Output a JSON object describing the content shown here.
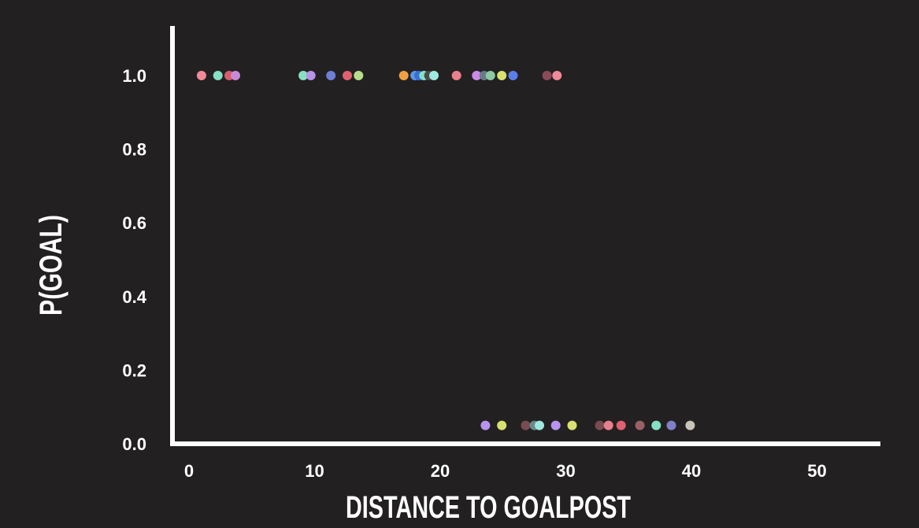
{
  "chart_data": {
    "type": "scatter",
    "title": "",
    "xlabel": "DISTANCE TO GOALPOST",
    "ylabel": "P(GOAL)",
    "xlim": [
      -1.5,
      57
    ],
    "ylim": [
      0,
      1.1
    ],
    "x_ticks": [
      0,
      10,
      20,
      30,
      40,
      50
    ],
    "y_ticks": [
      0.0,
      0.2,
      0.4,
      0.6,
      0.8,
      1.0
    ],
    "y_tick_labels": [
      "0.0",
      "0.2",
      "0.4",
      "0.6",
      "0.8",
      "1.0"
    ],
    "grid": false,
    "points": [
      {
        "x": 1.0,
        "y": 1.0,
        "color": "#f08a96"
      },
      {
        "x": 2.3,
        "y": 1.0,
        "color": "#86e0c4"
      },
      {
        "x": 3.2,
        "y": 1.0,
        "color": "#d45d6e"
      },
      {
        "x": 3.7,
        "y": 1.0,
        "color": "#c98ad8"
      },
      {
        "x": 9.1,
        "y": 1.0,
        "color": "#86e0c4"
      },
      {
        "x": 9.7,
        "y": 1.0,
        "color": "#b894e8"
      },
      {
        "x": 11.3,
        "y": 1.0,
        "color": "#6f7fd6"
      },
      {
        "x": 12.6,
        "y": 1.0,
        "color": "#e06070"
      },
      {
        "x": 13.5,
        "y": 1.0,
        "color": "#b8dc8c"
      },
      {
        "x": 17.1,
        "y": 1.0,
        "color": "#f0a040"
      },
      {
        "x": 18.0,
        "y": 1.0,
        "color": "#5b9ae8"
      },
      {
        "x": 18.3,
        "y": 1.0,
        "color": "#3b6fd8"
      },
      {
        "x": 18.7,
        "y": 1.0,
        "color": "#86e0c4"
      },
      {
        "x": 19.1,
        "y": 1.0,
        "color": "#4a4a4a"
      },
      {
        "x": 19.5,
        "y": 1.0,
        "color": "#9fe8e0"
      },
      {
        "x": 21.3,
        "y": 1.0,
        "color": "#e8808c"
      },
      {
        "x": 22.9,
        "y": 1.0,
        "color": "#c98ae8"
      },
      {
        "x": 23.5,
        "y": 1.0,
        "color": "#6a7a8a"
      },
      {
        "x": 24.0,
        "y": 1.0,
        "color": "#8cc8a0"
      },
      {
        "x": 24.9,
        "y": 1.0,
        "color": "#d8e070"
      },
      {
        "x": 25.8,
        "y": 1.0,
        "color": "#5b7ee8"
      },
      {
        "x": 28.5,
        "y": 1.0,
        "color": "#8a4a58"
      },
      {
        "x": 29.3,
        "y": 1.0,
        "color": "#f08a96"
      },
      {
        "x": 23.6,
        "y": 0.05,
        "color": "#b894f0"
      },
      {
        "x": 24.9,
        "y": 0.05,
        "color": "#d8e070"
      },
      {
        "x": 26.8,
        "y": 0.05,
        "color": "#7a4a52"
      },
      {
        "x": 27.5,
        "y": 0.05,
        "color": "#6a8a8a"
      },
      {
        "x": 27.9,
        "y": 0.05,
        "color": "#9fe8e0"
      },
      {
        "x": 29.2,
        "y": 0.05,
        "color": "#b894f0"
      },
      {
        "x": 30.5,
        "y": 0.05,
        "color": "#d8e070"
      },
      {
        "x": 32.7,
        "y": 0.05,
        "color": "#7a4a52"
      },
      {
        "x": 33.4,
        "y": 0.05,
        "color": "#e8808c"
      },
      {
        "x": 34.4,
        "y": 0.05,
        "color": "#e06070"
      },
      {
        "x": 35.9,
        "y": 0.05,
        "color": "#9a6068"
      },
      {
        "x": 37.2,
        "y": 0.05,
        "color": "#86e0c4"
      },
      {
        "x": 38.4,
        "y": 0.05,
        "color": "#8080c8"
      },
      {
        "x": 39.9,
        "y": 0.05,
        "color": "#c8c4b8"
      }
    ],
    "colors": {
      "background": "#222021",
      "axis": "#ffffff",
      "text": "#ffffff"
    }
  }
}
